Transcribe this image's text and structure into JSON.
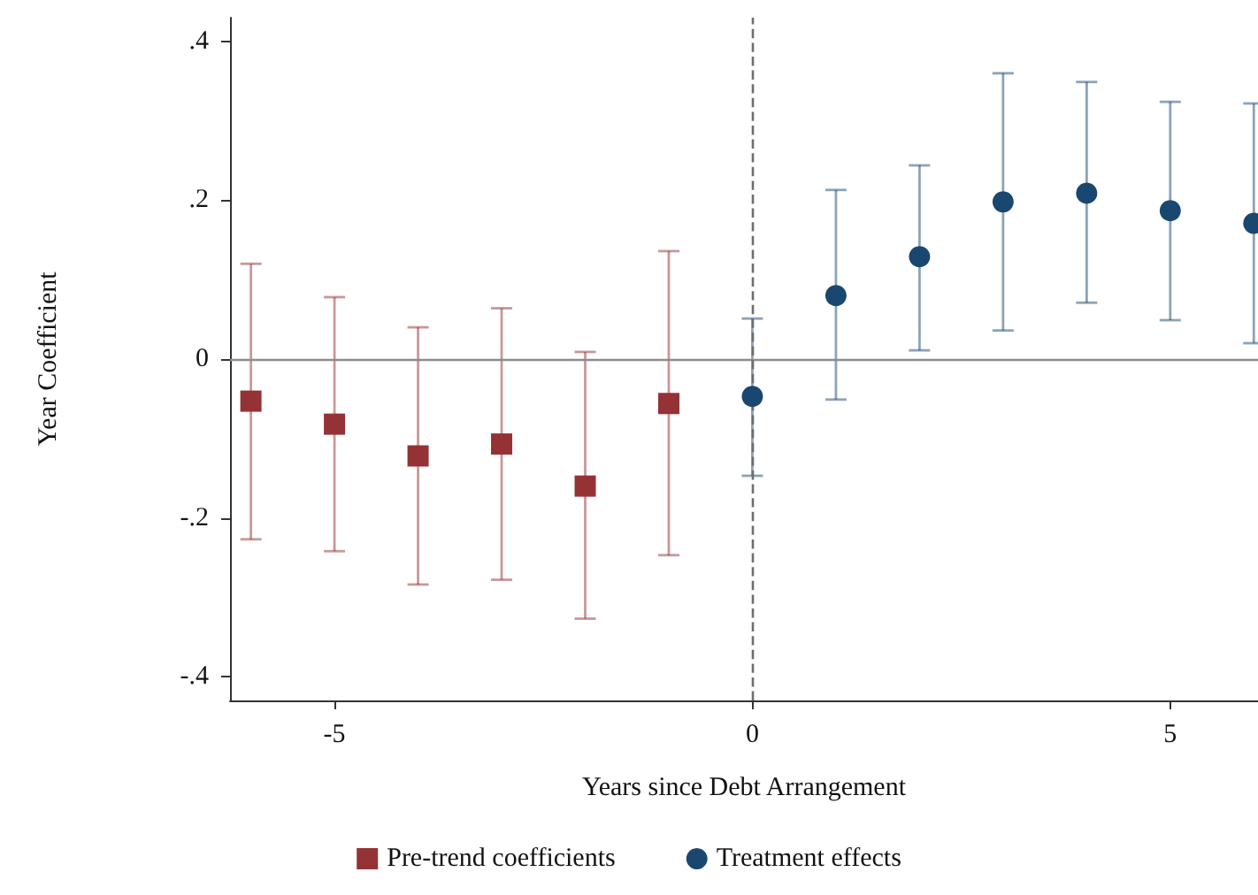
{
  "chart_data": {
    "type": "scatter",
    "xlabel": "Years since Debt Arrangement",
    "ylabel": "Year Coefficient",
    "xlim": [
      -6.25,
      6.05
    ],
    "xticks": [
      -5,
      0,
      5
    ],
    "ylim": [
      -0.43,
      0.43
    ],
    "yticks": [
      {
        "value": -0.4,
        "label": "-.4"
      },
      {
        "value": -0.2,
        "label": "-.2"
      },
      0,
      {
        "value": 0.2,
        "label": ".2"
      },
      {
        "value": 0.4,
        "label": ".4"
      }
    ],
    "grid": false,
    "legend": "bottom",
    "series": [
      {
        "name": "Pre-trend coefficients",
        "color": "#943236",
        "marker": "square",
        "x": [
          -6,
          -5,
          -4,
          -3,
          -2,
          -1
        ],
        "values": [
          -0.053,
          -0.082,
          -0.122,
          -0.107,
          -0.16,
          -0.056
        ],
        "errors": [
          [
            -0.227,
            0.12
          ],
          [
            -0.242,
            0.078
          ],
          [
            -0.284,
            0.04
          ],
          [
            -0.278,
            0.064
          ],
          [
            -0.327,
            0.009
          ],
          [
            -0.247,
            0.136
          ]
        ]
      },
      {
        "name": "Treatment effects",
        "color": "#1a476f",
        "marker": "circle",
        "x": [
          0,
          1,
          2,
          3,
          4,
          5,
          6
        ],
        "values": [
          -0.047,
          0.08,
          0.129,
          0.198,
          0.209,
          0.187,
          0.171
        ],
        "errors": [
          [
            -0.147,
            0.051
          ],
          [
            -0.051,
            0.213
          ],
          [
            0.011,
            0.244
          ],
          [
            0.036,
            0.36
          ],
          [
            0.071,
            0.349
          ],
          [
            0.049,
            0.324
          ],
          [
            0.02,
            0.322
          ]
        ]
      }
    ],
    "ref_lines": [
      {
        "axis": "y",
        "value": 0,
        "color": "#8c8c8c",
        "line_style": "solid"
      },
      {
        "axis": "x",
        "value": 0,
        "color": "#6e6e6e",
        "line_style": "dashed"
      }
    ]
  }
}
